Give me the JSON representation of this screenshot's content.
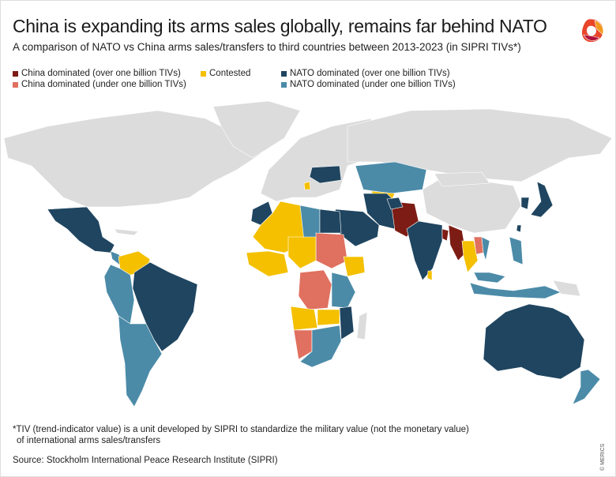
{
  "title": "China is expanding its arms sales globally, remains far behind NATO",
  "subtitle": "A comparison of NATO vs China arms sales/transfers to third countries between 2013-2023 (in SIPRI TIVs*)",
  "legend": [
    {
      "key": "china_over",
      "label": "China dominated (over one billion TIVs)",
      "color": "#7d1c14"
    },
    {
      "key": "china_under",
      "label": "China dominated (under one billion TIVs)",
      "color": "#e0705f"
    },
    {
      "key": "contested",
      "label": "Contested",
      "color": "#f4c000"
    },
    {
      "key": "nato_over",
      "label": "NATO dominated (over one billion TIVs)",
      "color": "#1f4560"
    },
    {
      "key": "nato_under",
      "label": "NATO dominated (under one billion TIVs)",
      "color": "#4b8ba8"
    }
  ],
  "no_data_color": "#dcdcdc",
  "footnote_line1": "*TIV (trend-indicator value) is a unit developed by SIPRI to standardize the military value (not the monetary value)",
  "footnote_line2": "of international arms sales/transfers",
  "source": "Source: Stockholm International Peace Research Institute (SIPRI)",
  "copyright": "© MERICS"
}
